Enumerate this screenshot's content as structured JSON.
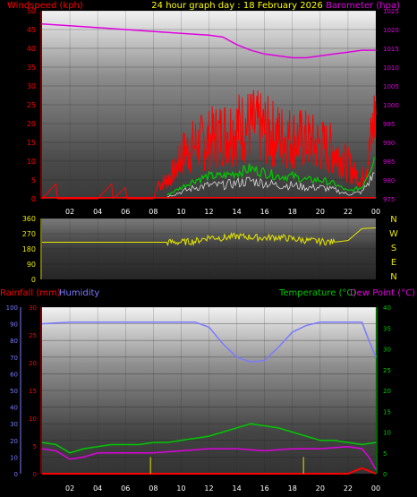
{
  "header": {
    "title": "24 hour graph day : 18 February 2026",
    "windspeed_label": "Windspeed (kph)",
    "barometer_label": "Barometer (hpa)"
  },
  "lower_header": {
    "rainfall_label": "Rainfall (mm)",
    "humidity_label": "Humidity",
    "temperature_label": "Temperature (°C)",
    "dewpoint_label": "Dew Point (°C)"
  },
  "direction_labels": [
    "N",
    "W",
    "S",
    "E",
    "N"
  ],
  "colors": {
    "windspeed": "#ff0000",
    "wind_avg": "#00cc00",
    "wind_white": "#ffffff",
    "barometer": "#e000e0",
    "direction": "#e8e800",
    "rainfall": "#ff0000",
    "humidity": "#7a7aff",
    "temperature": "#00c800",
    "dewpoint": "#e000e0",
    "rain_tick": "#c8c800",
    "title": "#ffff00"
  },
  "chart_data": [
    {
      "type": "line",
      "name": "wind_barometer",
      "x_ticks": [
        "02",
        "04",
        "06",
        "08",
        "10",
        "12",
        "14",
        "16",
        "18",
        "20",
        "22",
        "00"
      ],
      "y_left_ticks": [
        "0",
        "5",
        "10",
        "15",
        "20",
        "25",
        "30",
        "35",
        "40",
        "45",
        "50"
      ],
      "y_right_ticks": [
        "975",
        "980",
        "985",
        "990",
        "995",
        "1000",
        "1005",
        "1010",
        "1015",
        "1020",
        "1025"
      ],
      "ylim_left": [
        0,
        50
      ],
      "ylim_right": [
        975,
        1025
      ],
      "x_range": [
        0,
        24
      ],
      "barometer": {
        "x": [
          0,
          2,
          4,
          6,
          8,
          10,
          12,
          13,
          14,
          15,
          16,
          17,
          18,
          19,
          20,
          21,
          22,
          23,
          24
        ],
        "y": [
          1021.5,
          1021,
          1020.5,
          1020,
          1019.5,
          1019,
          1018.5,
          1018,
          1016,
          1014.5,
          1013.5,
          1013,
          1012.5,
          1012.5,
          1013,
          1013.5,
          1014,
          1014.5,
          1014.5
        ]
      },
      "wind_gust_envelope": {
        "x": [
          0,
          1,
          1.1,
          4,
          5,
          5.1,
          6,
          6.1,
          8,
          8.5,
          9,
          9.6,
          10,
          11,
          12,
          13,
          14,
          15,
          16,
          17,
          18,
          19,
          20,
          21,
          22,
          22.5,
          23,
          23.5,
          24
        ],
        "y": [
          0,
          4,
          0,
          0,
          4,
          0,
          3,
          0,
          0,
          6,
          8,
          12,
          18,
          22,
          24,
          27,
          29,
          30,
          28,
          26,
          25,
          24,
          22,
          20,
          14,
          10,
          8,
          18,
          37
        ]
      },
      "wind_average": {
        "x": [
          9,
          10,
          11,
          12,
          13,
          14,
          15,
          16,
          17,
          18,
          19,
          20,
          21,
          22,
          23,
          24
        ],
        "y": [
          1,
          3,
          5,
          6,
          6,
          7,
          8,
          7,
          6,
          6,
          5,
          5,
          4,
          2,
          3,
          12
        ]
      }
    },
    {
      "type": "line",
      "name": "wind_direction",
      "y_ticks": [
        "0",
        "90",
        "180",
        "270",
        "360"
      ],
      "ylim": [
        0,
        360
      ],
      "x_range": [
        0,
        24
      ],
      "direction": {
        "x": [
          0,
          4,
          8,
          9,
          10,
          11,
          12,
          13,
          14,
          15,
          16,
          17,
          18,
          19,
          20,
          21,
          22,
          23,
          24
        ],
        "y": [
          220,
          220,
          220,
          220,
          220,
          225,
          250,
          245,
          255,
          250,
          245,
          250,
          240,
          230,
          225,
          220,
          230,
          300,
          305
        ]
      }
    },
    {
      "type": "line",
      "name": "temp_humidity_rain",
      "x_ticks": [
        "02",
        "04",
        "06",
        "08",
        "10",
        "12",
        "14",
        "16",
        "18",
        "20",
        "22",
        "00"
      ],
      "humidity_ticks": [
        "0",
        "10",
        "20",
        "30",
        "40",
        "50",
        "60",
        "70",
        "80",
        "90",
        "100"
      ],
      "rain_ticks": [
        "0",
        "5",
        "10",
        "15",
        "20",
        "25",
        "30"
      ],
      "temp_ticks": [
        "0",
        "5",
        "10",
        "15",
        "20",
        "25",
        "30",
        "35",
        "40"
      ],
      "x_range": [
        0,
        24
      ],
      "humidity_lim": [
        0,
        100
      ],
      "rain_lim": [
        0,
        30
      ],
      "temp_lim": [
        0,
        40
      ],
      "humidity": {
        "x": [
          0,
          2,
          4,
          6,
          8,
          10,
          11,
          12,
          13,
          14,
          15,
          16,
          17,
          18,
          19,
          20,
          21,
          22,
          23,
          23.5,
          24
        ],
        "y": [
          90,
          91,
          91,
          91,
          91,
          91,
          91,
          88,
          78,
          70,
          67,
          68,
          76,
          85,
          89,
          91,
          91,
          91,
          91,
          80,
          70
        ]
      },
      "temperature": {
        "x": [
          0,
          1,
          2,
          3,
          4,
          5,
          6,
          7,
          8,
          9,
          10,
          11,
          12,
          13,
          14,
          15,
          16,
          17,
          18,
          19,
          20,
          21,
          22,
          23,
          24
        ],
        "y": [
          7.5,
          7,
          5,
          6,
          6.5,
          7,
          7,
          7,
          7.5,
          7.5,
          8,
          8.5,
          9,
          10,
          11,
          12,
          11.5,
          11,
          10,
          9,
          8,
          8,
          7.5,
          7,
          7.5
        ]
      },
      "dewpoint": {
        "x": [
          0,
          1,
          2,
          3,
          4,
          5,
          6,
          8,
          10,
          12,
          14,
          16,
          18,
          20,
          22,
          23,
          23.5,
          24
        ],
        "y": [
          6,
          5.5,
          3.5,
          4,
          5,
          5,
          5,
          5,
          5.5,
          6,
          6,
          5.5,
          6,
          6,
          6.5,
          6,
          4,
          1
        ]
      },
      "rainfall": {
        "x": [
          0,
          22,
          22.5,
          23,
          24
        ],
        "y": [
          0,
          0,
          0.5,
          1,
          0
        ]
      },
      "rain_events": [
        7.8,
        18.8
      ]
    }
  ]
}
